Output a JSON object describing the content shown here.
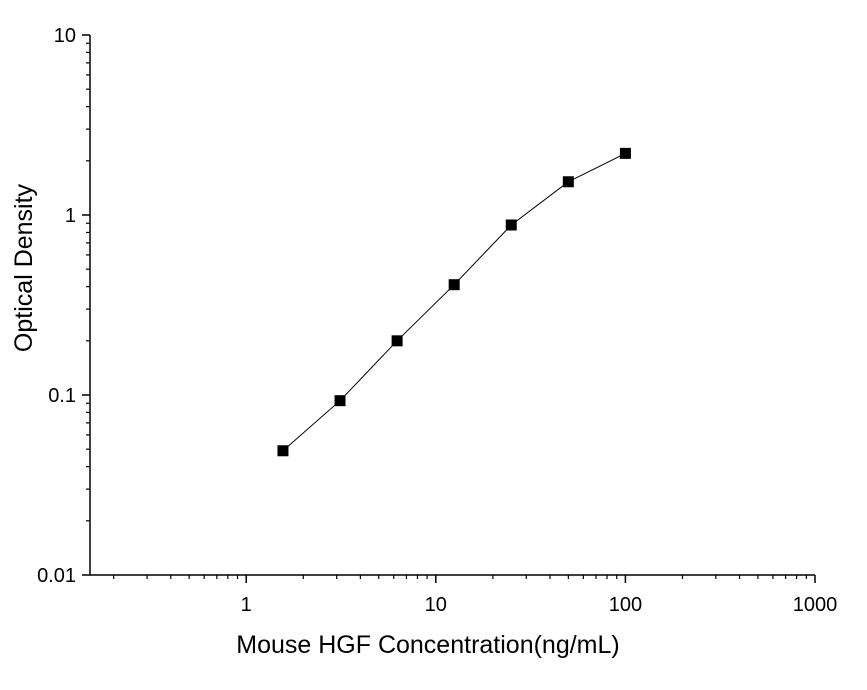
{
  "chart_data": {
    "type": "line",
    "title": "",
    "xlabel": "Mouse HGF Concentration(ng/mL)",
    "ylabel": "Optical  Density",
    "xscale": "log",
    "yscale": "log",
    "xlim": [
      0.15,
      1000
    ],
    "ylim": [
      0.01,
      10
    ],
    "grid": false,
    "legend": "none",
    "xticks": [
      1,
      10,
      100,
      1000
    ],
    "xtick_labels": [
      "1",
      "10",
      "100",
      "1000"
    ],
    "yticks": [
      0.01,
      0.1,
      1,
      10
    ],
    "ytick_labels": [
      "0.01",
      "0.1",
      "1",
      "10"
    ],
    "marker": "square",
    "color": "#000000",
    "x": [
      1.5625,
      3.125,
      6.25,
      12.5,
      25,
      50,
      100
    ],
    "y": [
      0.049,
      0.093,
      0.2,
      0.41,
      0.88,
      1.53,
      2.2
    ]
  }
}
